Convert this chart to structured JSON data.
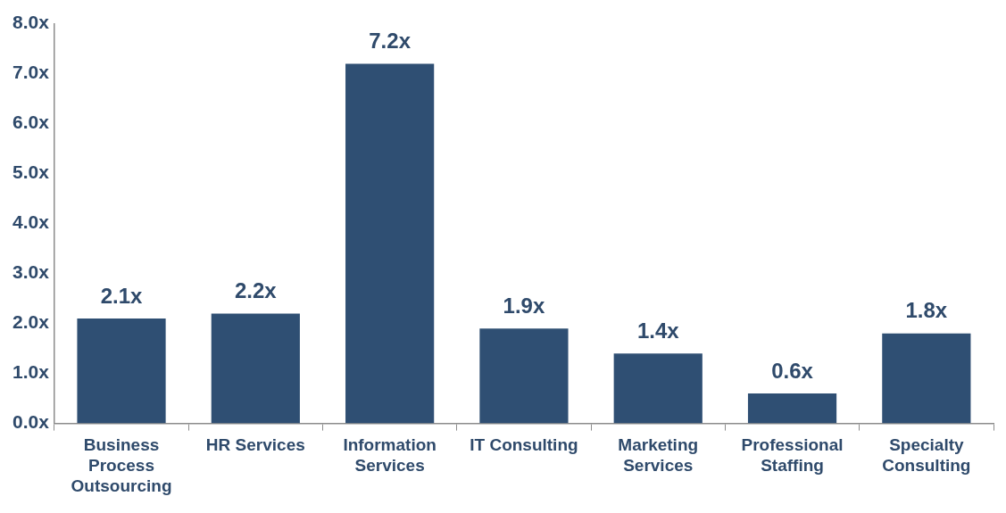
{
  "chart_data": {
    "type": "bar",
    "categories": [
      "Business Process Outsourcing",
      "HR Services",
      "Information Services",
      "IT Consulting",
      "Marketing Services",
      "Professional Staffing",
      "Specialty Consulting"
    ],
    "values": [
      2.1,
      2.2,
      7.2,
      1.9,
      1.4,
      0.6,
      1.8
    ],
    "value_labels": [
      "2.1x",
      "2.2x",
      "7.2x",
      "1.9x",
      "1.4x",
      "0.6x",
      "1.8x"
    ],
    "color": "#2f4f73",
    "ylim": [
      0,
      8
    ],
    "yticks": [
      {
        "value": 0,
        "label": "0.0x"
      },
      {
        "value": 1,
        "label": "1.0x"
      },
      {
        "value": 2,
        "label": "2.0x"
      },
      {
        "value": 3,
        "label": "3.0x"
      },
      {
        "value": 4,
        "label": "4.0x"
      },
      {
        "value": 5,
        "label": "5.0x"
      },
      {
        "value": 6,
        "label": "6.0x"
      },
      {
        "value": 7,
        "label": "7.0x"
      },
      {
        "value": 8,
        "label": "8.0x"
      }
    ],
    "grid": false,
    "legend": false
  }
}
